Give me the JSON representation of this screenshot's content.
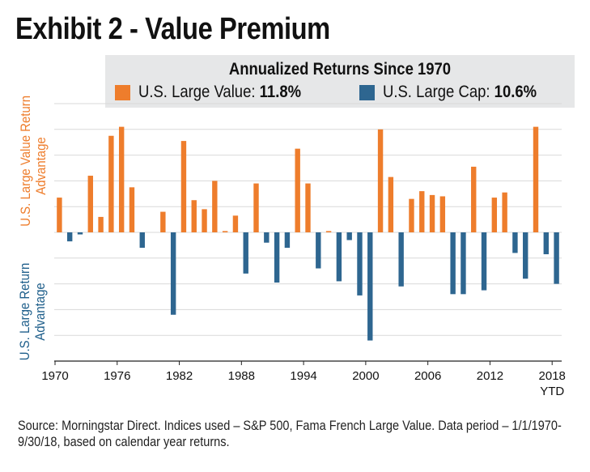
{
  "title": "Exhibit 2 - Value Premium",
  "legend": {
    "title": "Annualized Returns Since 1970",
    "items": [
      {
        "name": "U.S. Large Value:",
        "value": "11.8%",
        "color": "#ee7d2c"
      },
      {
        "name": "U.S. Large Cap:",
        "value": "10.6%",
        "color": "#2e6690"
      }
    ]
  },
  "ylabel_top": [
    "U.S. Large Value Return",
    "Advantage"
  ],
  "ylabel_bottom": [
    "U.S. Large Return",
    "Advantage"
  ],
  "source": "Source: Morningstar Direct. Indices used – S&P 500, Fama French Large Value. Data period – 1/1/1970-9/30/18, based on calendar year returns.",
  "chart_data": {
    "type": "bar",
    "title": "Exhibit 2 - Value Premium",
    "x": [
      1970,
      1971,
      1972,
      1973,
      1974,
      1975,
      1976,
      1977,
      1978,
      1979,
      1980,
      1981,
      1982,
      1983,
      1984,
      1985,
      1986,
      1987,
      1988,
      1989,
      1990,
      1991,
      1992,
      1993,
      1994,
      1995,
      1996,
      1997,
      1998,
      1999,
      2000,
      2001,
      2002,
      2003,
      2004,
      2005,
      2006,
      2007,
      2008,
      2009,
      2010,
      2011,
      2012,
      2013,
      2014,
      2015,
      2016,
      2017,
      2018
    ],
    "values": [
      13.5,
      -3.5,
      -0.8,
      22,
      6,
      37.5,
      41,
      17.5,
      -6,
      0,
      8,
      -32,
      35.5,
      12.5,
      9,
      20,
      0.5,
      6.5,
      -16,
      19,
      -4,
      -19.5,
      -6,
      32.5,
      19,
      -14,
      0.5,
      -19,
      -3,
      -24.5,
      -42,
      40,
      21.5,
      -21,
      13,
      16,
      14.5,
      14,
      -24,
      -24,
      25.5,
      -22.5,
      13.5,
      15.5,
      -8,
      -18,
      41,
      -8.5,
      -20
    ],
    "positive_color": "#ee7d2c",
    "negative_color": "#2e6690",
    "x_ticks": [
      "1970",
      "1976",
      "1982",
      "1988",
      "1994",
      "2000",
      "2006",
      "2012",
      "2018"
    ],
    "x_tick_sublabel": "YTD",
    "ylim": [
      -50,
      50
    ],
    "grid": true,
    "legend_position": "top-right"
  }
}
